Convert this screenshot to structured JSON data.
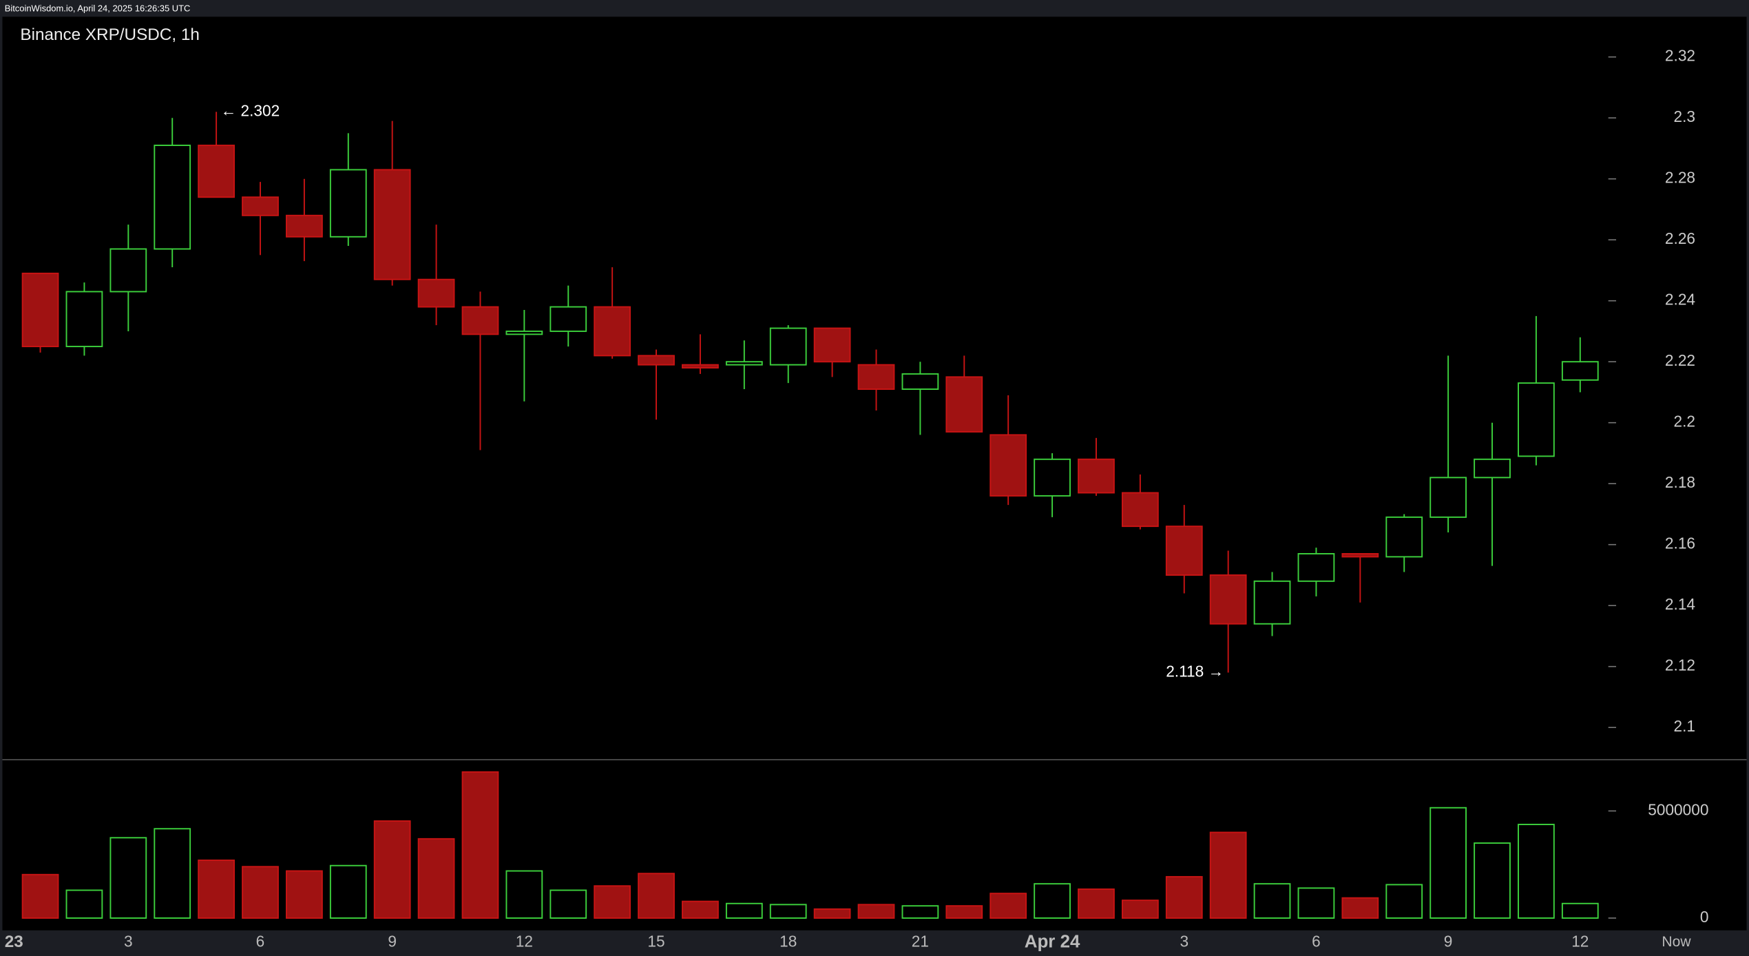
{
  "header": {
    "text": "BitcoinWisdom.io, April 24, 2025 16:26:35 UTC"
  },
  "chart_data": {
    "type": "candlestick",
    "title": "Binance XRP/USDC, 1h",
    "categories": [
      null,
      null,
      "3",
      null,
      null,
      "6",
      null,
      null,
      "9",
      null,
      null,
      "12",
      null,
      null,
      "15",
      null,
      null,
      "18",
      null,
      null,
      "21",
      null,
      null,
      "Apr 24",
      null,
      null,
      "3",
      null,
      null,
      "6",
      null,
      null,
      "9",
      null,
      null,
      "12"
    ],
    "x_start_label": "23",
    "x_end_label": "Now",
    "open": [
      2.249,
      2.225,
      2.243,
      2.257,
      2.291,
      2.274,
      2.268,
      2.261,
      2.283,
      2.247,
      2.238,
      2.229,
      2.23,
      2.238,
      2.222,
      2.219,
      2.219,
      2.219,
      2.231,
      2.219,
      2.211,
      2.215,
      2.196,
      2.176,
      2.188,
      2.177,
      2.166,
      2.15,
      2.134,
      2.148,
      2.157,
      2.156,
      2.169,
      2.182,
      2.189,
      2.214
    ],
    "high": [
      2.249,
      2.246,
      2.265,
      2.3,
      2.302,
      2.279,
      2.28,
      2.295,
      2.299,
      2.265,
      2.243,
      2.237,
      2.245,
      2.251,
      2.224,
      2.229,
      2.227,
      2.232,
      2.231,
      2.224,
      2.22,
      2.222,
      2.209,
      2.19,
      2.195,
      2.183,
      2.173,
      2.158,
      2.151,
      2.159,
      2.157,
      2.17,
      2.222,
      2.2,
      2.235,
      2.228
    ],
    "low": [
      2.223,
      2.222,
      2.23,
      2.251,
      2.274,
      2.255,
      2.253,
      2.258,
      2.245,
      2.232,
      2.191,
      2.207,
      2.225,
      2.221,
      2.201,
      2.216,
      2.211,
      2.213,
      2.215,
      2.204,
      2.196,
      2.197,
      2.173,
      2.169,
      2.176,
      2.165,
      2.144,
      2.118,
      2.13,
      2.143,
      2.141,
      2.151,
      2.164,
      2.153,
      2.186,
      2.21
    ],
    "close": [
      2.225,
      2.243,
      2.257,
      2.291,
      2.274,
      2.268,
      2.261,
      2.283,
      2.247,
      2.238,
      2.229,
      2.23,
      2.238,
      2.222,
      2.219,
      2.218,
      2.22,
      2.231,
      2.22,
      2.211,
      2.216,
      2.197,
      2.176,
      2.188,
      2.177,
      2.166,
      2.15,
      2.134,
      2.148,
      2.157,
      2.156,
      2.169,
      2.182,
      2.188,
      2.213,
      2.22
    ],
    "volume": [
      2030000,
      1300000,
      3750000,
      4170000,
      2700000,
      2400000,
      2200000,
      2450000,
      4530000,
      3700000,
      6820000,
      2200000,
      1300000,
      1500000,
      2080000,
      780000,
      680000,
      630000,
      420000,
      630000,
      570000,
      570000,
      1150000,
      1600000,
      1350000,
      830000,
      1930000,
      4000000,
      1600000,
      1400000,
      940000,
      1560000,
      5150000,
      3500000,
      4370000,
      680000
    ],
    "ylim": [
      2.0898,
      2.3332
    ],
    "yticks": [
      2.1,
      2.12,
      2.14,
      2.16,
      2.18,
      2.2,
      2.22,
      2.24,
      2.26,
      2.28,
      2.3,
      2.32
    ],
    "volume_ylim": [
      0,
      7290000
    ],
    "volume_ticks": [
      0,
      5000000
    ],
    "up_color": "#3ccf3c",
    "down_color": "#a01212",
    "annotations": [
      {
        "text": "← 2.302"
      },
      {
        "text": "2.118 →"
      }
    ]
  }
}
